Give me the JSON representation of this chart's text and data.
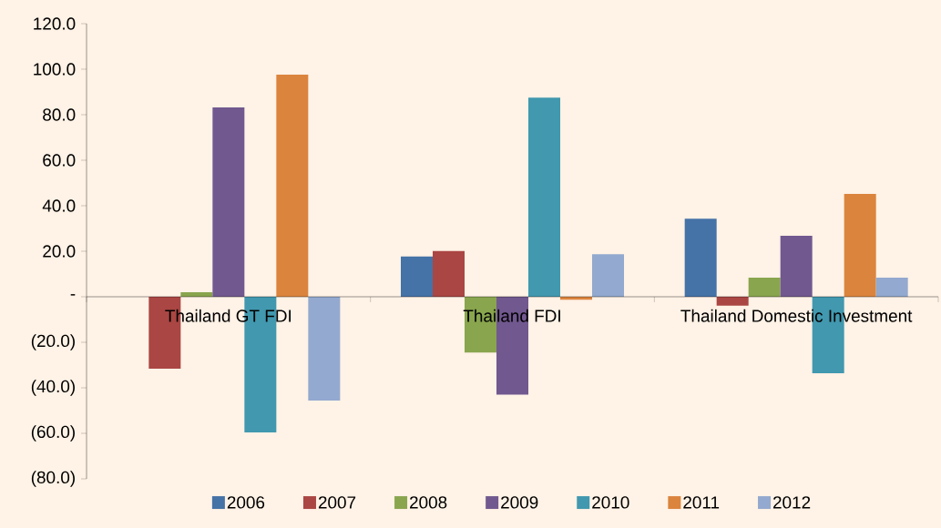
{
  "chart_data": {
    "type": "bar",
    "categories": [
      "Thailand GT FDI",
      "Thailand FDI",
      "Thailand Domestic Investment"
    ],
    "series": [
      {
        "name": "2006",
        "color": "#4572a7",
        "values": [
          0,
          17.7,
          34.3
        ]
      },
      {
        "name": "2007",
        "color": "#aa4643",
        "values": [
          -31.6,
          20.1,
          -3.9
        ]
      },
      {
        "name": "2008",
        "color": "#89a54e",
        "values": [
          2.0,
          -24.5,
          8.4
        ]
      },
      {
        "name": "2009",
        "color": "#71588f",
        "values": [
          83.2,
          -43.0,
          26.8
        ]
      },
      {
        "name": "2010",
        "color": "#4198af",
        "values": [
          -59.6,
          87.5,
          -33.6
        ]
      },
      {
        "name": "2011",
        "color": "#db843d",
        "values": [
          97.6,
          -1.3,
          45.2
        ]
      },
      {
        "name": "2012",
        "color": "#93a9cf",
        "values": [
          -45.6,
          18.7,
          8.4
        ]
      }
    ],
    "ylim": [
      -80,
      120
    ],
    "yticks": [
      {
        "value": -80,
        "label": "(80.0)"
      },
      {
        "value": -60,
        "label": "(60.0)"
      },
      {
        "value": -40,
        "label": "(40.0)"
      },
      {
        "value": -20,
        "label": "(20.0)"
      },
      {
        "value": 0,
        "label": "-"
      },
      {
        "value": 20,
        "label": "20.0"
      },
      {
        "value": 40,
        "label": "40.0"
      },
      {
        "value": 60,
        "label": "60.0"
      },
      {
        "value": 80,
        "label": "80.0"
      },
      {
        "value": 100,
        "label": "100.0"
      },
      {
        "value": 120,
        "label": "120.0"
      }
    ],
    "grid": false,
    "legend": "bottom"
  }
}
